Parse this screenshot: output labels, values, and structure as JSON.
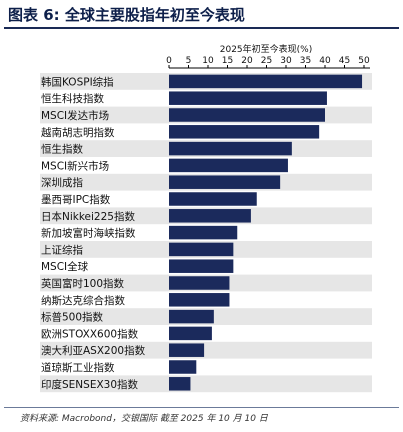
{
  "figure": {
    "title": "图表 6: 全球主要股指年初至今表现",
    "footnote": "资料来源: Macrobond，交银国际  截至 2025 年 10 月 10 日"
  },
  "colors": {
    "bar": "#1b2a5c",
    "stripe": "#e6e6e6",
    "axis": "#000000",
    "title": "#0d1f4a"
  },
  "chart_data": {
    "type": "bar",
    "orientation": "horizontal",
    "title": "2025年初至今表现(%)",
    "xlim": [
      0,
      50
    ],
    "xticks": [
      0,
      5,
      10,
      15,
      20,
      25,
      30,
      35,
      40,
      45,
      50
    ],
    "grid": false,
    "categories": [
      "韩国KOSPI综指",
      "恒生科技指数",
      "MSCI发达市场",
      "越南胡志明指数",
      "恒生指数",
      "MSCI新兴市场",
      "深圳成指",
      "墨西哥IPC指数",
      "日本Nikkei225指数",
      "新加坡富时海峡指数",
      "上证综指",
      "MSCI全球",
      "英国富时100指数",
      "纳斯达克综合指数",
      "标普500指数",
      "欧洲STOXX600指数",
      "澳大利亚ASX200指数",
      "道琼斯工业指数",
      "印度SENSEX30指数"
    ],
    "values": [
      49.5,
      40.5,
      40.0,
      38.5,
      31.5,
      30.5,
      28.5,
      22.5,
      21.0,
      17.5,
      16.5,
      16.5,
      15.5,
      15.5,
      11.5,
      11.0,
      9.0,
      7.0,
      5.5
    ]
  }
}
